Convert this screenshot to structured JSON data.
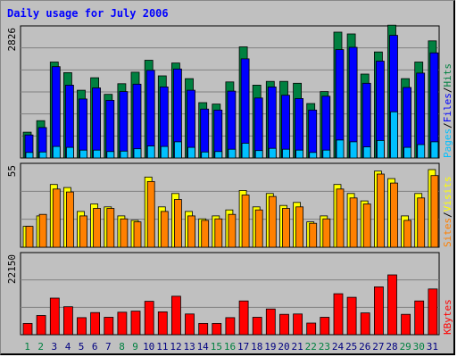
{
  "title": "Daily usage for July 2006",
  "colors": {
    "background": "#c0c0c0",
    "plot_background": "#c0c0c0",
    "grid": "#808080",
    "title": "#0000ff",
    "hits": "#008040",
    "files": "#0000ff",
    "pages": "#00c0ff",
    "visits": "#ffff00",
    "sites": "#ff8000",
    "kbytes": "#ff0000",
    "weekend_tick": "#008040",
    "weekday_tick": "#000080"
  },
  "chart_data": [
    {
      "type": "bar",
      "name_label": "hits-files-pages",
      "max_label": "2826",
      "ylim": [
        0,
        2826
      ],
      "grid": true,
      "side_labels": [
        "Pages",
        "/",
        "Files",
        "/",
        "Hits"
      ],
      "categories": [
        "1",
        "2",
        "3",
        "4",
        "5",
        "6",
        "7",
        "8",
        "9",
        "10",
        "11",
        "12",
        "13",
        "14",
        "15",
        "16",
        "17",
        "18",
        "19",
        "20",
        "21",
        "22",
        "23",
        "24",
        "25",
        "26",
        "27",
        "28",
        "29",
        "30",
        "31"
      ],
      "series": [
        {
          "name": "Hits",
          "values": [
            560,
            810,
            2080,
            1850,
            1470,
            1740,
            1380,
            1610,
            1860,
            2120,
            1780,
            2060,
            1720,
            1200,
            1170,
            1650,
            2410,
            1580,
            1660,
            1660,
            1620,
            1180,
            1440,
            2730,
            2690,
            1820,
            2300,
            2880,
            1720,
            2080,
            2540
          ]
        },
        {
          "name": "Files",
          "values": [
            500,
            660,
            1980,
            1580,
            1280,
            1520,
            1250,
            1440,
            1600,
            1900,
            1540,
            1930,
            1470,
            1060,
            1040,
            1450,
            2150,
            1300,
            1540,
            1360,
            1290,
            1040,
            1340,
            2350,
            2400,
            1620,
            2100,
            2660,
            1530,
            1840,
            2280
          ]
        },
        {
          "name": "Pages",
          "values": [
            120,
            130,
            250,
            230,
            170,
            170,
            140,
            150,
            200,
            260,
            250,
            350,
            230,
            130,
            140,
            190,
            320,
            160,
            210,
            190,
            170,
            120,
            170,
            390,
            350,
            240,
            380,
            1000,
            230,
            290,
            350
          ]
        }
      ]
    },
    {
      "type": "bar",
      "name_label": "visits-sites",
      "max_label": "55",
      "ylim": [
        0,
        55
      ],
      "grid": true,
      "side_labels": [
        "Sites",
        "/",
        "Visits"
      ],
      "categories": [
        "1",
        "2",
        "3",
        "4",
        "5",
        "6",
        "7",
        "8",
        "9",
        "10",
        "11",
        "12",
        "13",
        "14",
        "15",
        "16",
        "17",
        "18",
        "19",
        "20",
        "21",
        "22",
        "23",
        "24",
        "25",
        "26",
        "27",
        "28",
        "29",
        "30",
        "31"
      ],
      "series": [
        {
          "name": "Visits",
          "values": [
            14,
            21,
            42,
            40,
            24,
            29,
            27,
            21,
            18,
            47,
            27,
            36,
            24,
            19,
            21,
            25,
            38,
            27,
            36,
            28,
            30,
            17,
            21,
            42,
            36,
            31,
            51,
            46,
            21,
            36,
            52
          ]
        },
        {
          "name": "Sites",
          "values": [
            14,
            22,
            39,
            37,
            21,
            26,
            26,
            19,
            17,
            44,
            24,
            32,
            21,
            18,
            19,
            22,
            35,
            25,
            34,
            26,
            27,
            16,
            19,
            39,
            33,
            29,
            49,
            43,
            18,
            33,
            48
          ]
        }
      ]
    },
    {
      "type": "bar",
      "name_label": "kbytes",
      "max_label": "22150",
      "ylim": [
        0,
        22150
      ],
      "grid": true,
      "side_labels": [
        "KBytes"
      ],
      "categories": [
        "1",
        "2",
        "3",
        "4",
        "5",
        "6",
        "7",
        "8",
        "9",
        "10",
        "11",
        "12",
        "13",
        "14",
        "15",
        "16",
        "17",
        "18",
        "19",
        "20",
        "21",
        "22",
        "23",
        "24",
        "25",
        "26",
        "27",
        "28",
        "29",
        "30",
        "31"
      ],
      "series": [
        {
          "name": "KBytes",
          "values": [
            3100,
            5300,
            10100,
            7700,
            4700,
            6100,
            4800,
            6200,
            6500,
            9200,
            6300,
            10600,
            5700,
            3100,
            3100,
            4700,
            9300,
            4800,
            7100,
            5600,
            5700,
            3200,
            4800,
            11300,
            10300,
            6000,
            13200,
            16500,
            5600,
            9300,
            12600
          ]
        }
      ]
    }
  ],
  "x_ticks": [
    "1",
    "2",
    "3",
    "4",
    "5",
    "6",
    "7",
    "8",
    "9",
    "10",
    "11",
    "12",
    "13",
    "14",
    "15",
    "16",
    "17",
    "18",
    "19",
    "20",
    "21",
    "22",
    "23",
    "24",
    "25",
    "26",
    "27",
    "28",
    "29",
    "30",
    "31"
  ],
  "weekend_days": [
    "1",
    "2",
    "8",
    "9",
    "15",
    "16",
    "22",
    "23",
    "29",
    "30"
  ]
}
